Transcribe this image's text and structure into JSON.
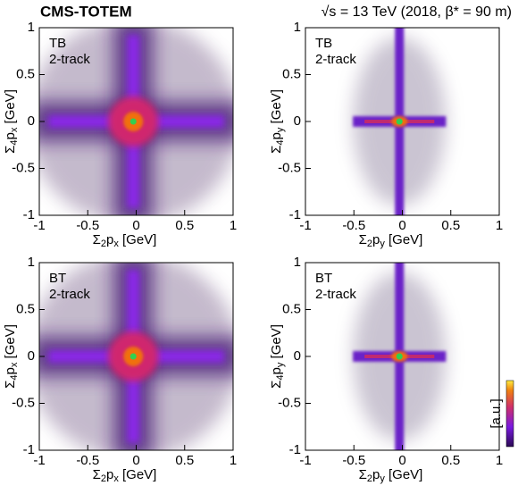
{
  "chart_data": [
    {
      "type": "heatmap",
      "title": "CMS-TOTEM",
      "subtitle": "√s = 13 TeV (2018, β* = 90 m)",
      "label": [
        "TB",
        "2-track"
      ],
      "xlabel": [
        "Σ",
        "2",
        "p",
        "x",
        " [GeV]"
      ],
      "ylabel": [
        "Σ",
        "4",
        "p",
        "x",
        " [GeV]"
      ],
      "xlim": [
        -1,
        1
      ],
      "ylim": [
        -1,
        1
      ],
      "xticks": [
        -1,
        -0.5,
        0,
        0.5,
        1
      ],
      "yticks": [
        -1,
        -0.5,
        0,
        0.5,
        1
      ]
    },
    {
      "type": "heatmap",
      "label": [
        "TB",
        "2-track"
      ],
      "xlabel": [
        "Σ",
        "2",
        "p",
        "y",
        " [GeV]"
      ],
      "ylabel": [
        "Σ",
        "4",
        "p",
        "y",
        " [GeV]"
      ],
      "xlim": [
        -1,
        1
      ],
      "ylim": [
        -1,
        1
      ],
      "xticks": [
        -1,
        -0.5,
        0,
        0.5,
        1
      ],
      "yticks": [
        -1,
        -0.5,
        0,
        0.5,
        1
      ]
    },
    {
      "type": "heatmap",
      "label": [
        "BT",
        "2-track"
      ],
      "xlabel": [
        "Σ",
        "2",
        "p",
        "x",
        " [GeV]"
      ],
      "ylabel": [
        "Σ",
        "4",
        "p",
        "x",
        " [GeV]"
      ],
      "xlim": [
        -1,
        1
      ],
      "ylim": [
        -1,
        1
      ],
      "xticks": [
        -1,
        -0.5,
        0,
        0.5,
        1
      ],
      "yticks": [
        -1,
        -0.5,
        0,
        0.5,
        1
      ]
    },
    {
      "type": "heatmap",
      "label": [
        "BT",
        "2-track"
      ],
      "xlabel": [
        "Σ",
        "2",
        "p",
        "y",
        " [GeV]"
      ],
      "ylabel": [
        "Σ",
        "4",
        "p",
        "y",
        " [GeV]"
      ],
      "xlim": [
        -1,
        1
      ],
      "ylim": [
        -1,
        1
      ],
      "xticks": [
        -1,
        -0.5,
        0,
        0.5,
        1
      ],
      "yticks": [
        -1,
        -0.5,
        0,
        0.5,
        1
      ],
      "colorbar_label": "[a.u.]"
    }
  ]
}
